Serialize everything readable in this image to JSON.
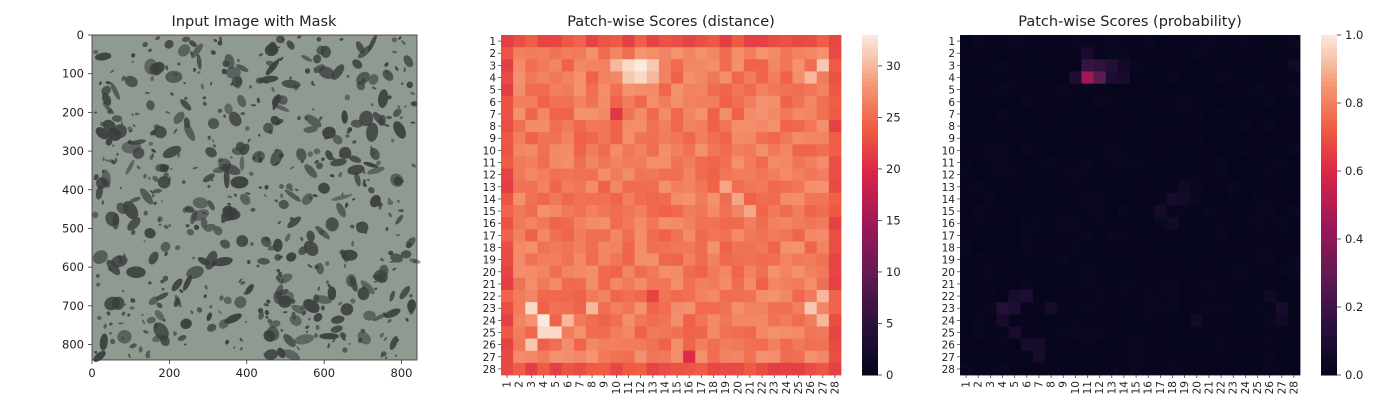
{
  "chart_data": [
    {
      "type": "image",
      "title": "Input Image with Mask",
      "xlim": [
        0,
        840
      ],
      "ylim": [
        840,
        0
      ],
      "x_ticks": [
        0,
        200,
        400,
        600,
        800
      ],
      "y_ticks": [
        0,
        100,
        200,
        300,
        400,
        500,
        600,
        700,
        800
      ],
      "content": "grayscale speckled texture",
      "background_color": "#8f9a91",
      "spot_color": "#3a3e3d"
    },
    {
      "type": "heatmap",
      "title": "Patch-wise Scores (distance)",
      "rows": 28,
      "cols": 28,
      "x_tick_labels": [
        "1",
        "2",
        "3",
        "4",
        "5",
        "6",
        "7",
        "8",
        "9",
        "10",
        "11",
        "12",
        "13",
        "14",
        "15",
        "16",
        "17",
        "18",
        "19",
        "20",
        "21",
        "22",
        "23",
        "24",
        "25",
        "26",
        "27",
        "28"
      ],
      "y_tick_labels": [
        "1",
        "2",
        "3",
        "4",
        "5",
        "6",
        "7",
        "8",
        "9",
        "10",
        "11",
        "12",
        "13",
        "14",
        "15",
        "16",
        "17",
        "18",
        "19",
        "20",
        "21",
        "22",
        "23",
        "24",
        "25",
        "26",
        "27",
        "28"
      ],
      "value_range": [
        0,
        33
      ],
      "colorbar_ticks": [
        0,
        5,
        10,
        15,
        20,
        25,
        30
      ],
      "colormap": "rocket",
      "border_value": 23,
      "interior_value": 26,
      "hotspots": [
        {
          "row": 3,
          "col": 12,
          "value": 33
        },
        {
          "row": 3,
          "col": 11,
          "value": 32
        },
        {
          "row": 4,
          "col": 12,
          "value": 32
        },
        {
          "row": 4,
          "col": 11,
          "value": 31
        },
        {
          "row": 3,
          "col": 13,
          "value": 31
        },
        {
          "row": 4,
          "col": 13,
          "value": 30
        },
        {
          "row": 3,
          "col": 10,
          "value": 30
        },
        {
          "row": 23,
          "col": 3,
          "value": 32
        },
        {
          "row": 24,
          "col": 4,
          "value": 33
        },
        {
          "row": 25,
          "col": 4,
          "value": 32
        },
        {
          "row": 25,
          "col": 5,
          "value": 32
        },
        {
          "row": 26,
          "col": 3,
          "value": 31
        },
        {
          "row": 24,
          "col": 6,
          "value": 30
        },
        {
          "row": 23,
          "col": 8,
          "value": 30
        },
        {
          "row": 22,
          "col": 27,
          "value": 30
        },
        {
          "row": 23,
          "col": 26,
          "value": 31
        },
        {
          "row": 24,
          "col": 27,
          "value": 30
        },
        {
          "row": 3,
          "col": 27,
          "value": 31
        },
        {
          "row": 4,
          "col": 26,
          "value": 30
        },
        {
          "row": 14,
          "col": 20,
          "value": 29
        },
        {
          "row": 13,
          "col": 19,
          "value": 29
        },
        {
          "row": 15,
          "col": 21,
          "value": 29
        },
        {
          "row": 7,
          "col": 10,
          "value": 21
        },
        {
          "row": 27,
          "col": 16,
          "value": 20
        },
        {
          "row": 22,
          "col": 13,
          "value": 22
        }
      ]
    },
    {
      "type": "heatmap",
      "title": "Patch-wise Scores (probability)",
      "rows": 28,
      "cols": 28,
      "x_tick_labels": [
        "1",
        "2",
        "3",
        "4",
        "5",
        "6",
        "7",
        "8",
        "9",
        "10",
        "11",
        "12",
        "13",
        "14",
        "15",
        "16",
        "17",
        "18",
        "19",
        "20",
        "21",
        "22",
        "23",
        "24",
        "25",
        "26",
        "27",
        "28"
      ],
      "y_tick_labels": [
        "1",
        "2",
        "3",
        "4",
        "5",
        "6",
        "7",
        "8",
        "9",
        "10",
        "11",
        "12",
        "13",
        "14",
        "15",
        "16",
        "17",
        "18",
        "19",
        "20",
        "21",
        "22",
        "23",
        "24",
        "25",
        "26",
        "27",
        "28"
      ],
      "value_range": [
        0.0,
        1.0
      ],
      "colorbar_ticks": [
        0.0,
        0.2,
        0.4,
        0.6,
        0.8,
        1.0
      ],
      "colorbar_tick_labels": [
        "0.0",
        "0.2",
        "0.4",
        "0.6",
        "0.8",
        "1.0"
      ],
      "colormap": "rocket",
      "baseline_value": 0.02,
      "hotspots": [
        {
          "row": 4,
          "col": 11,
          "value": 0.45
        },
        {
          "row": 4,
          "col": 12,
          "value": 0.28
        },
        {
          "row": 3,
          "col": 11,
          "value": 0.18
        },
        {
          "row": 3,
          "col": 12,
          "value": 0.16
        },
        {
          "row": 3,
          "col": 13,
          "value": 0.12
        },
        {
          "row": 4,
          "col": 13,
          "value": 0.1
        },
        {
          "row": 4,
          "col": 10,
          "value": 0.1
        },
        {
          "row": 2,
          "col": 11,
          "value": 0.08
        },
        {
          "row": 4,
          "col": 14,
          "value": 0.08
        },
        {
          "row": 3,
          "col": 14,
          "value": 0.06
        },
        {
          "row": 23,
          "col": 4,
          "value": 0.12
        },
        {
          "row": 23,
          "col": 5,
          "value": 0.1
        },
        {
          "row": 22,
          "col": 6,
          "value": 0.1
        },
        {
          "row": 24,
          "col": 4,
          "value": 0.08
        },
        {
          "row": 25,
          "col": 5,
          "value": 0.08
        },
        {
          "row": 26,
          "col": 6,
          "value": 0.08
        },
        {
          "row": 26,
          "col": 7,
          "value": 0.07
        },
        {
          "row": 27,
          "col": 7,
          "value": 0.07
        },
        {
          "row": 23,
          "col": 8,
          "value": 0.07
        },
        {
          "row": 22,
          "col": 5,
          "value": 0.08
        },
        {
          "row": 14,
          "col": 18,
          "value": 0.07
        },
        {
          "row": 14,
          "col": 19,
          "value": 0.06
        },
        {
          "row": 15,
          "col": 17,
          "value": 0.07
        },
        {
          "row": 16,
          "col": 18,
          "value": 0.06
        },
        {
          "row": 13,
          "col": 19,
          "value": 0.05
        },
        {
          "row": 23,
          "col": 27,
          "value": 0.08
        },
        {
          "row": 24,
          "col": 27,
          "value": 0.06
        },
        {
          "row": 22,
          "col": 26,
          "value": 0.05
        },
        {
          "row": 3,
          "col": 28,
          "value": 0.05
        },
        {
          "row": 24,
          "col": 20,
          "value": 0.06
        }
      ]
    }
  ]
}
